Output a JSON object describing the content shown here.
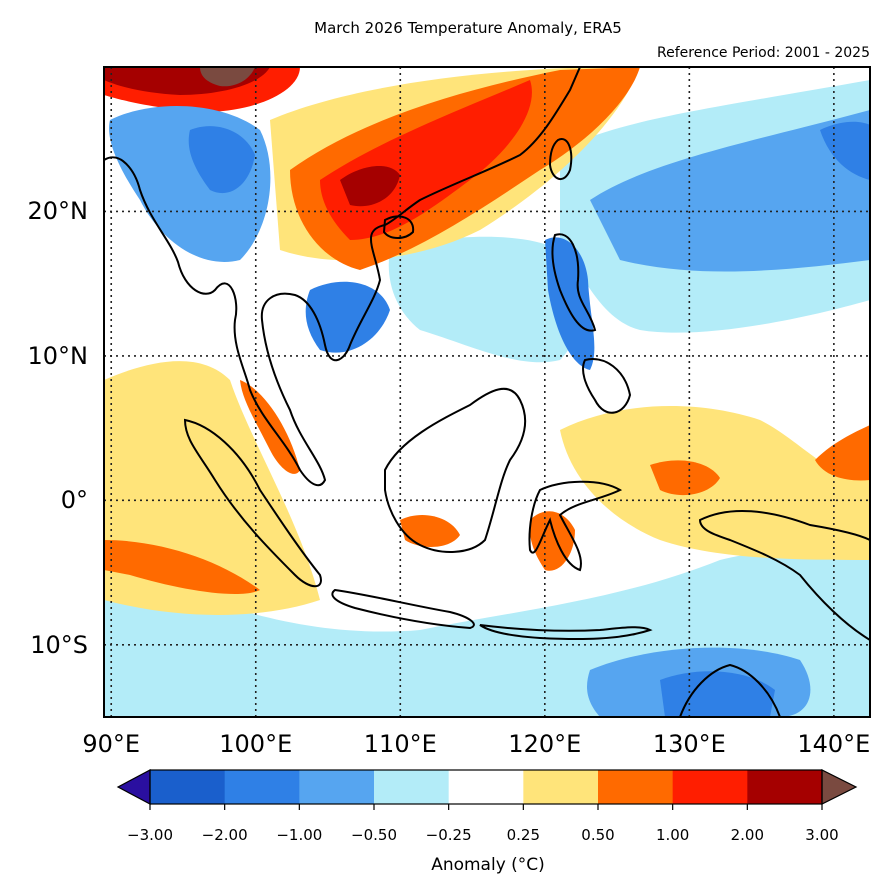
{
  "title": "March 2026 Temperature Anomaly, ERA5",
  "reference_period": "Reference Period: 2001 - 2025",
  "map": {
    "lon_range": [
      89.5,
      142.5
    ],
    "lat_range": [
      -15,
      30
    ],
    "lat_ticks": [
      {
        "value": 20,
        "label": "20°N"
      },
      {
        "value": 10,
        "label": "10°N"
      },
      {
        "value": 0,
        "label": "0°"
      },
      {
        "value": -10,
        "label": "10°S"
      }
    ],
    "lon_ticks": [
      {
        "value": 90,
        "label": "90°E"
      },
      {
        "value": 100,
        "label": "100°E"
      },
      {
        "value": 110,
        "label": "110°E"
      },
      {
        "value": 120,
        "label": "120°E"
      },
      {
        "value": 130,
        "label": "130°E"
      },
      {
        "value": 140,
        "label": "140°E"
      }
    ],
    "gridlines": true
  },
  "colorbar": {
    "label": "Anomaly (°C)",
    "ticks": [
      "−3.00",
      "−2.00",
      "−1.00",
      "−0.50",
      "−0.25",
      "0.25",
      "0.50",
      "1.00",
      "2.00",
      "3.00"
    ],
    "colors": [
      "#1a5fcc",
      "#2f80e6",
      "#56a5f0",
      "#b3ecf8",
      "#ffffff",
      "#ffe47a",
      "#ff6a00",
      "#ff1e00",
      "#a50000"
    ],
    "under_color": "#2a0fa0",
    "over_color": "#7a4a40"
  }
}
